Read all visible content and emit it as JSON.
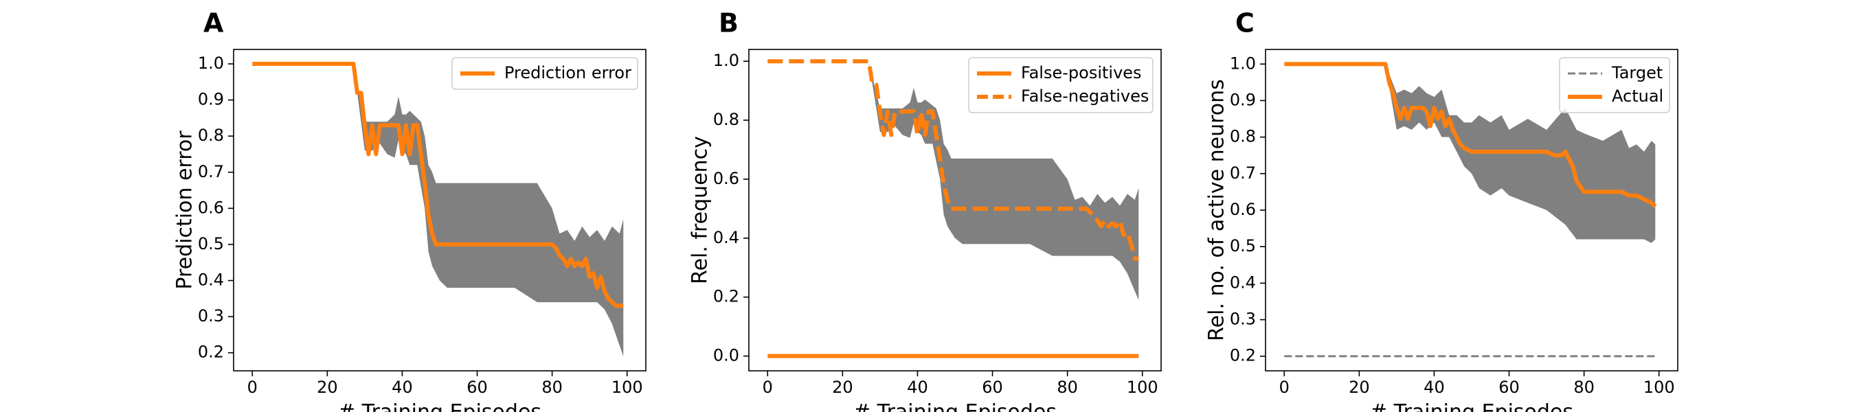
{
  "chart_data": [
    {
      "type": "line",
      "panel_label": "A",
      "title": "",
      "xlabel": "# Training Episodes",
      "ylabel": "Prediction error",
      "xlim": [
        -5,
        105
      ],
      "ylim": [
        0.15,
        1.04
      ],
      "xticks": [
        0,
        20,
        40,
        60,
        80,
        100
      ],
      "yticks": [
        0.2,
        0.3,
        0.4,
        0.5,
        0.6,
        0.7,
        0.8,
        0.9,
        1.0
      ],
      "grid": false,
      "legend_position": "top-right",
      "series": [
        {
          "name": "Prediction error",
          "color": "#ff7f0e",
          "style": "solid",
          "x": [
            0,
            27,
            28,
            29,
            30,
            31,
            32,
            33,
            34,
            35,
            36,
            37,
            38,
            39,
            40,
            41,
            42,
            43,
            44,
            45,
            46,
            47,
            48,
            49,
            50,
            80,
            81,
            82,
            83,
            84,
            85,
            86,
            87,
            88,
            89,
            90,
            91,
            92,
            93,
            94,
            95,
            96,
            97,
            98,
            99
          ],
          "y": [
            1.0,
            1.0,
            0.92,
            0.92,
            0.83,
            0.75,
            0.83,
            0.75,
            0.83,
            0.83,
            0.83,
            0.83,
            0.83,
            0.83,
            0.75,
            0.83,
            0.75,
            0.83,
            0.83,
            0.75,
            0.67,
            0.58,
            0.53,
            0.5,
            0.5,
            0.5,
            0.49,
            0.47,
            0.46,
            0.44,
            0.46,
            0.44,
            0.45,
            0.44,
            0.46,
            0.41,
            0.42,
            0.38,
            0.41,
            0.37,
            0.35,
            0.34,
            0.33,
            0.33,
            0.33
          ]
        }
      ],
      "band": {
        "color": "#808080",
        "x": [
          0,
          27,
          30,
          32,
          34,
          36,
          38,
          39,
          40,
          41,
          42,
          43,
          44,
          45,
          46,
          47,
          48,
          49,
          50,
          52,
          55,
          60,
          70,
          76,
          80,
          82,
          84,
          86,
          88,
          90,
          92,
          94,
          96,
          98,
          99
        ],
        "lower": [
          1.0,
          1.0,
          0.76,
          0.76,
          0.78,
          0.75,
          0.74,
          0.79,
          0.76,
          0.75,
          0.72,
          0.72,
          0.72,
          0.66,
          0.6,
          0.48,
          0.44,
          0.42,
          0.4,
          0.38,
          0.38,
          0.38,
          0.38,
          0.34,
          0.34,
          0.34,
          0.34,
          0.34,
          0.34,
          0.34,
          0.34,
          0.32,
          0.28,
          0.22,
          0.19
        ],
        "upper": [
          1.0,
          1.0,
          0.84,
          0.84,
          0.84,
          0.84,
          0.86,
          0.91,
          0.86,
          0.86,
          0.87,
          0.86,
          0.85,
          0.84,
          0.8,
          0.72,
          0.7,
          0.67,
          0.67,
          0.67,
          0.67,
          0.67,
          0.67,
          0.67,
          0.6,
          0.53,
          0.54,
          0.51,
          0.55,
          0.52,
          0.54,
          0.51,
          0.55,
          0.53,
          0.57
        ]
      }
    },
    {
      "type": "line",
      "panel_label": "B",
      "title": "",
      "xlabel": "# Training Episodes",
      "ylabel": "Rel. frequency",
      "xlim": [
        -5,
        105
      ],
      "ylim": [
        -0.05,
        1.04
      ],
      "xticks": [
        0,
        20,
        40,
        60,
        80,
        100
      ],
      "yticks": [
        0.0,
        0.2,
        0.4,
        0.6,
        0.8,
        1.0
      ],
      "grid": false,
      "legend_position": "top-right",
      "series": [
        {
          "name": "False-positives",
          "color": "#ff7f0e",
          "style": "solid",
          "x": [
            0,
            99
          ],
          "y": [
            0.0,
            0.0
          ]
        },
        {
          "name": "False-negatives",
          "color": "#ff7f0e",
          "style": "dashed",
          "x": [
            0,
            27,
            28,
            29,
            30,
            31,
            32,
            33,
            34,
            35,
            36,
            37,
            38,
            39,
            40,
            41,
            42,
            43,
            44,
            45,
            46,
            47,
            48,
            49,
            50,
            85,
            86,
            87,
            88,
            89,
            90,
            91,
            92,
            93,
            94,
            95,
            96,
            97,
            98,
            99
          ],
          "y": [
            1.0,
            1.0,
            0.92,
            0.92,
            0.83,
            0.75,
            0.83,
            0.75,
            0.83,
            0.83,
            0.83,
            0.83,
            0.83,
            0.83,
            0.75,
            0.83,
            0.75,
            0.83,
            0.83,
            0.75,
            0.67,
            0.58,
            0.53,
            0.5,
            0.5,
            0.5,
            0.49,
            0.47,
            0.46,
            0.44,
            0.46,
            0.44,
            0.45,
            0.44,
            0.46,
            0.41,
            0.42,
            0.38,
            0.33,
            0.33
          ]
        }
      ],
      "band": {
        "color": "#808080",
        "x": [
          0,
          27,
          30,
          32,
          34,
          36,
          38,
          39,
          40,
          41,
          42,
          43,
          44,
          45,
          46,
          47,
          48,
          49,
          50,
          52,
          55,
          60,
          70,
          76,
          80,
          82,
          84,
          86,
          88,
          90,
          92,
          94,
          96,
          98,
          99
        ],
        "lower": [
          1.0,
          1.0,
          0.76,
          0.76,
          0.78,
          0.75,
          0.74,
          0.79,
          0.76,
          0.75,
          0.72,
          0.72,
          0.72,
          0.66,
          0.6,
          0.48,
          0.44,
          0.42,
          0.4,
          0.38,
          0.38,
          0.38,
          0.38,
          0.34,
          0.34,
          0.34,
          0.34,
          0.34,
          0.34,
          0.34,
          0.34,
          0.32,
          0.28,
          0.22,
          0.19
        ],
        "upper": [
          1.0,
          1.0,
          0.84,
          0.84,
          0.84,
          0.84,
          0.86,
          0.91,
          0.86,
          0.86,
          0.87,
          0.86,
          0.85,
          0.84,
          0.8,
          0.72,
          0.7,
          0.67,
          0.67,
          0.67,
          0.67,
          0.67,
          0.67,
          0.67,
          0.6,
          0.53,
          0.54,
          0.51,
          0.55,
          0.52,
          0.54,
          0.51,
          0.55,
          0.53,
          0.57
        ]
      }
    },
    {
      "type": "line",
      "panel_label": "C",
      "title": "",
      "xlabel": "# Training Episodes",
      "ylabel": "Rel. no. of active neurons",
      "xlim": [
        -5,
        105
      ],
      "ylim": [
        0.16,
        1.04
      ],
      "xticks": [
        0,
        20,
        40,
        60,
        80,
        100
      ],
      "yticks": [
        0.2,
        0.3,
        0.4,
        0.5,
        0.6,
        0.7,
        0.8,
        0.9,
        1.0
      ],
      "grid": false,
      "legend_position": "top-right",
      "series": [
        {
          "name": "Target",
          "color": "#808080",
          "style": "dashed-thin",
          "x": [
            0,
            99
          ],
          "y": [
            0.2,
            0.2
          ]
        },
        {
          "name": "Actual",
          "color": "#ff7f0e",
          "style": "solid",
          "x": [
            0,
            27,
            28,
            29,
            30,
            31,
            32,
            33,
            34,
            35,
            36,
            37,
            38,
            39,
            40,
            41,
            42,
            43,
            44,
            45,
            46,
            47,
            48,
            50,
            55,
            60,
            65,
            70,
            72,
            74,
            75,
            76,
            77,
            78,
            80,
            85,
            90,
            92,
            94,
            96,
            98,
            99
          ],
          "y": [
            1.0,
            1.0,
            0.95,
            0.92,
            0.88,
            0.85,
            0.88,
            0.85,
            0.88,
            0.88,
            0.88,
            0.88,
            0.87,
            0.83,
            0.88,
            0.85,
            0.87,
            0.83,
            0.85,
            0.82,
            0.8,
            0.78,
            0.77,
            0.76,
            0.76,
            0.76,
            0.76,
            0.76,
            0.75,
            0.75,
            0.76,
            0.74,
            0.72,
            0.68,
            0.65,
            0.65,
            0.65,
            0.64,
            0.64,
            0.63,
            0.62,
            0.61
          ]
        }
      ],
      "band": {
        "color": "#808080",
        "x": [
          0,
          27,
          30,
          32,
          34,
          36,
          38,
          40,
          42,
          44,
          46,
          48,
          50,
          52,
          55,
          58,
          60,
          65,
          70,
          75,
          78,
          80,
          85,
          90,
          92,
          94,
          96,
          98,
          99
        ],
        "lower": [
          1.0,
          1.0,
          0.82,
          0.83,
          0.82,
          0.84,
          0.82,
          0.84,
          0.8,
          0.8,
          0.76,
          0.72,
          0.7,
          0.66,
          0.64,
          0.66,
          0.64,
          0.62,
          0.6,
          0.56,
          0.52,
          0.52,
          0.52,
          0.52,
          0.52,
          0.52,
          0.52,
          0.51,
          0.52
        ],
        "upper": [
          1.0,
          1.0,
          0.92,
          0.93,
          0.92,
          0.94,
          0.92,
          0.91,
          0.93,
          0.86,
          0.86,
          0.84,
          0.84,
          0.86,
          0.84,
          0.86,
          0.82,
          0.85,
          0.82,
          0.88,
          0.82,
          0.81,
          0.79,
          0.82,
          0.77,
          0.78,
          0.76,
          0.79,
          0.78
        ]
      }
    }
  ]
}
